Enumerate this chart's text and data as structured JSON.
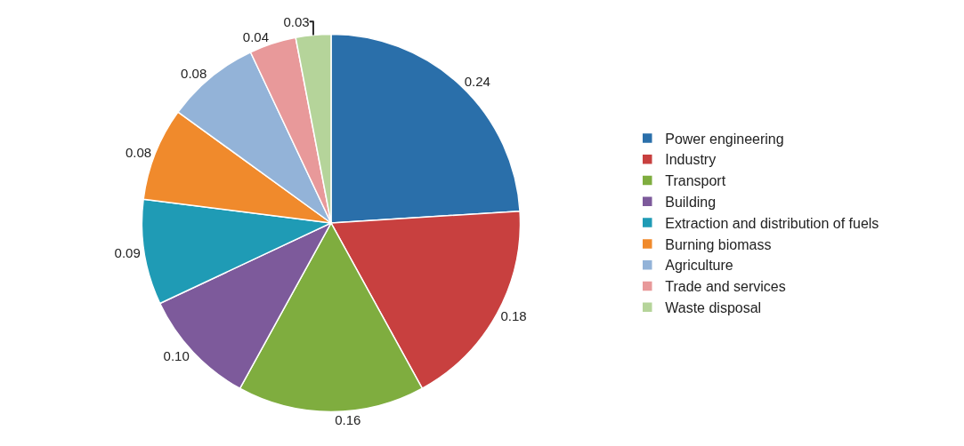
{
  "chart_data": {
    "type": "pie",
    "categories": [
      "Power engineering",
      "Industry",
      "Transport",
      "Building",
      "Extraction and distribution of fuels",
      "Burning biomass",
      "Agriculture",
      "Trade and services",
      "Waste disposal"
    ],
    "values": [
      0.24,
      0.18,
      0.16,
      0.1,
      0.09,
      0.08,
      0.08,
      0.04,
      0.03
    ],
    "value_labels": [
      "0.24",
      "0.18",
      "0.16",
      "0.10",
      "0.09",
      "0.08",
      "0.08",
      "0.04",
      "0.03"
    ],
    "colors": [
      "#2a6faa",
      "#c8403f",
      "#7fad3f",
      "#7d5a9b",
      "#1f9bb5",
      "#f08a2c",
      "#93b3d8",
      "#e8999a",
      "#b5d49a"
    ],
    "legend": "right"
  }
}
